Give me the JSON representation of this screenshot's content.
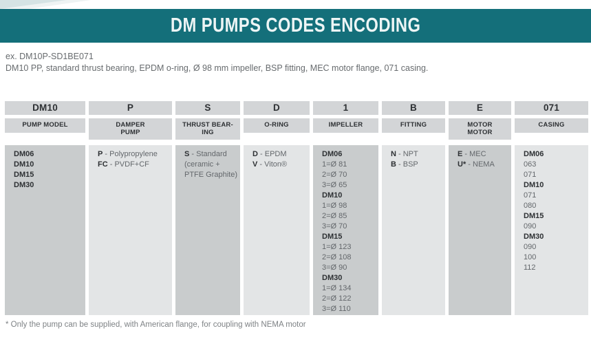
{
  "page": {
    "title": "DM PUMPS CODES ENCODING",
    "example_label": "ex. DM10P-SD1BE071",
    "example_description": "DM10 PP, standard thrust bearing, EPDM o-ring, Ø 98 mm impeller, BSP fitting, MEC motor flange, 071 casing.",
    "footnote": "* Only the pump can be supplied, with American flange, for coupling with NEMA motor"
  },
  "colors": {
    "teal": "#146f7a",
    "header_cell": "#d3d5d7",
    "body_cell_dark": "#c9cccd",
    "body_cell_light": "#e3e5e6",
    "text_dark": "#2d3033",
    "text_grey": "#63676b"
  },
  "table": {
    "columns": [
      {
        "code": "DM10",
        "name": "PUMP MODEL",
        "lines": [
          {
            "b": "DM06"
          },
          {
            "b": "DM10"
          },
          {
            "b": "DM15"
          },
          {
            "b": "DM30"
          }
        ]
      },
      {
        "code": "P",
        "name": "DAMPER\nPUMP",
        "lines": [
          {
            "b": "P",
            "t": " - Polypropylene"
          },
          {
            "b": "FC",
            "t": " - PVDF+CF"
          }
        ]
      },
      {
        "code": "S",
        "name": "THRUST BEAR-\nING",
        "lines": [
          {
            "b": "S",
            "t": " - Standard"
          },
          {
            "t": "(ceramic +"
          },
          {
            "t": "PTFE Graphite)"
          }
        ]
      },
      {
        "code": "D",
        "name": "O-RING",
        "lines": [
          {
            "b": "D",
            "t": " - EPDM"
          },
          {
            "b": "V",
            "t": " - Viton®"
          }
        ]
      },
      {
        "code": "1",
        "name": "IMPELLER",
        "lines": [
          {
            "b": "DM06"
          },
          {
            "t": "1=Ø 81"
          },
          {
            "t": "2=Ø 70"
          },
          {
            "t": "3=Ø 65"
          },
          {
            "b": "DM10"
          },
          {
            "t": "1=Ø 98"
          },
          {
            "t": "2=Ø 85"
          },
          {
            "t": "3=Ø 70"
          },
          {
            "b": "DM15"
          },
          {
            "t": "1=Ø 123"
          },
          {
            "t": "2=Ø 108"
          },
          {
            "t": "3=Ø 90"
          },
          {
            "b": "DM30"
          },
          {
            "t": "1=Ø 134"
          },
          {
            "t": "2=Ø 122"
          },
          {
            "t": "3=Ø 110"
          }
        ]
      },
      {
        "code": "B",
        "name": "FITTING",
        "lines": [
          {
            "b": "N",
            "t": " - NPT"
          },
          {
            "b": "B",
            "t": " - BSP"
          }
        ]
      },
      {
        "code": "E",
        "name": "MOTOR\nMOTOR",
        "lines": [
          {
            "b": "E",
            "t": " - MEC"
          },
          {
            "b": "U*",
            "t": " - NEMA"
          }
        ]
      },
      {
        "code": "071",
        "name": "CASING",
        "lines": [
          {
            "b": "DM06"
          },
          {
            "t": "063"
          },
          {
            "t": "071"
          },
          {
            "b": "DM10"
          },
          {
            "t": "071"
          },
          {
            "t": "080"
          },
          {
            "b": "DM15"
          },
          {
            "t": "090"
          },
          {
            "b": "DM30"
          },
          {
            "t": "090"
          },
          {
            "t": "100"
          },
          {
            "t": "112"
          }
        ]
      }
    ]
  }
}
